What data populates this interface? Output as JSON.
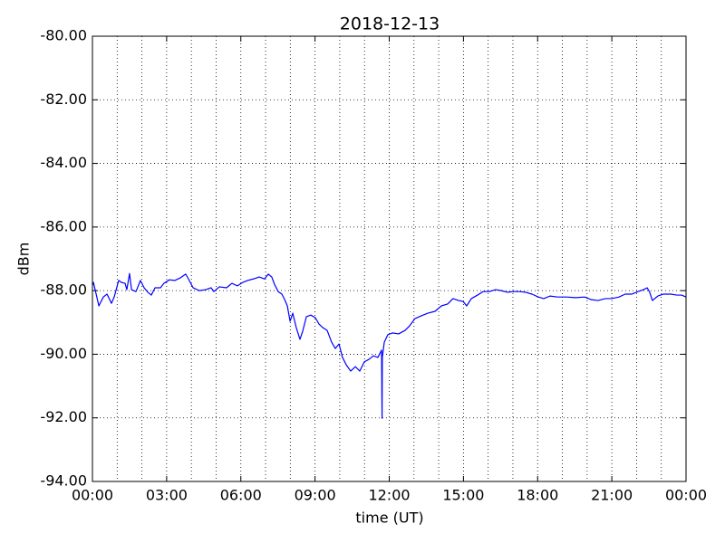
{
  "chart_data": {
    "type": "line",
    "title": "2018-12-13",
    "xlabel": "time (UT)",
    "ylabel": "dBm",
    "xlim": [
      0,
      24
    ],
    "ylim": [
      -94,
      -80
    ],
    "xticks": [
      {
        "value": 0,
        "label": "00:00"
      },
      {
        "value": 3,
        "label": "03:00"
      },
      {
        "value": 6,
        "label": "06:00"
      },
      {
        "value": 9,
        "label": "09:00"
      },
      {
        "value": 12,
        "label": "12:00"
      },
      {
        "value": 15,
        "label": "15:00"
      },
      {
        "value": 18,
        "label": "18:00"
      },
      {
        "value": 21,
        "label": "21:00"
      },
      {
        "value": 24,
        "label": "00:00"
      }
    ],
    "xminorticks": [
      1,
      2,
      4,
      5,
      7,
      8,
      10,
      11,
      13,
      14,
      16,
      17,
      19,
      20,
      22,
      23
    ],
    "yticks": [
      {
        "value": -94,
        "label": "-94.00"
      },
      {
        "value": -92,
        "label": "-92.00"
      },
      {
        "value": -90,
        "label": "-90.00"
      },
      {
        "value": -88,
        "label": "-88.00"
      },
      {
        "value": -86,
        "label": "-86.00"
      },
      {
        "value": -84,
        "label": "-84.00"
      },
      {
        "value": -82,
        "label": "-82.00"
      },
      {
        "value": -80,
        "label": "-80.00"
      }
    ],
    "grid": true,
    "series": [
      {
        "color": "#0000ff",
        "x": [
          0.0,
          0.04,
          0.15,
          0.26,
          0.44,
          0.59,
          0.77,
          0.88,
          1.06,
          1.17,
          1.32,
          1.39,
          1.5,
          1.58,
          1.76,
          1.94,
          2.09,
          2.24,
          2.38,
          2.53,
          2.75,
          2.89,
          3.11,
          3.33,
          3.55,
          3.77,
          3.88,
          4.07,
          4.32,
          4.58,
          4.8,
          4.91,
          5.13,
          5.42,
          5.64,
          5.86,
          6.08,
          6.27,
          6.52,
          6.74,
          6.96,
          7.11,
          7.25,
          7.36,
          7.51,
          7.66,
          7.77,
          7.88,
          7.99,
          8.1,
          8.24,
          8.39,
          8.5,
          8.65,
          8.83,
          9.01,
          9.16,
          9.31,
          9.49,
          9.67,
          9.82,
          9.97,
          10.11,
          10.26,
          10.44,
          10.63,
          10.81,
          10.99,
          11.18,
          11.36,
          11.54,
          11.69,
          11.71,
          11.72,
          11.8,
          11.94,
          12.13,
          12.38,
          12.64,
          12.82,
          13.04,
          13.3,
          13.56,
          13.85,
          14.11,
          14.36,
          14.58,
          14.8,
          14.99,
          15.13,
          15.32,
          15.57,
          15.79,
          16.05,
          16.3,
          16.52,
          16.78,
          17.04,
          17.26,
          17.51,
          17.77,
          18.03,
          18.25,
          18.5,
          18.8,
          19.16,
          19.53,
          19.9,
          20.15,
          20.44,
          20.74,
          20.99,
          21.29,
          21.54,
          21.8,
          22.06,
          22.28,
          22.43,
          22.53,
          22.64,
          22.86,
          23.08,
          23.38,
          23.63,
          23.82,
          24.0
        ],
        "values": [
          -87.83,
          -87.74,
          -88.11,
          -88.48,
          -88.2,
          -88.11,
          -88.4,
          -88.2,
          -87.68,
          -87.74,
          -87.77,
          -87.97,
          -87.46,
          -87.97,
          -88.03,
          -87.68,
          -87.91,
          -88.05,
          -88.14,
          -87.91,
          -87.91,
          -87.77,
          -87.66,
          -87.68,
          -87.6,
          -87.48,
          -87.63,
          -87.91,
          -88.0,
          -87.97,
          -87.91,
          -88.03,
          -87.88,
          -87.91,
          -87.77,
          -87.85,
          -87.74,
          -87.68,
          -87.63,
          -87.57,
          -87.63,
          -87.48,
          -87.57,
          -87.8,
          -88.03,
          -88.11,
          -88.28,
          -88.48,
          -88.96,
          -88.71,
          -89.16,
          -89.53,
          -89.28,
          -88.82,
          -88.77,
          -88.85,
          -89.05,
          -89.16,
          -89.25,
          -89.62,
          -89.82,
          -89.68,
          -90.1,
          -90.33,
          -90.53,
          -90.39,
          -90.53,
          -90.24,
          -90.16,
          -90.05,
          -90.1,
          -89.87,
          -92.01,
          -90.1,
          -89.62,
          -89.39,
          -89.33,
          -89.36,
          -89.25,
          -89.11,
          -88.88,
          -88.79,
          -88.71,
          -88.65,
          -88.48,
          -88.42,
          -88.25,
          -88.31,
          -88.34,
          -88.48,
          -88.25,
          -88.14,
          -88.03,
          -88.03,
          -87.97,
          -88.0,
          -88.05,
          -88.03,
          -88.03,
          -88.05,
          -88.11,
          -88.2,
          -88.25,
          -88.17,
          -88.2,
          -88.2,
          -88.22,
          -88.2,
          -88.28,
          -88.31,
          -88.25,
          -88.25,
          -88.2,
          -88.11,
          -88.11,
          -88.03,
          -87.97,
          -87.91,
          -88.05,
          -88.31,
          -88.17,
          -88.11,
          -88.11,
          -88.14,
          -88.14,
          -88.2
        ]
      }
    ]
  }
}
